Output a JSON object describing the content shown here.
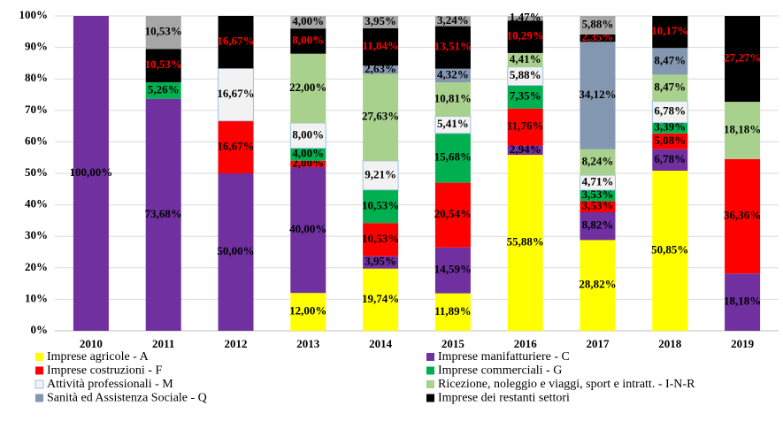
{
  "chart_data": {
    "type": "stacked_bar",
    "categories": [
      "2010",
      "2011",
      "2012",
      "2013",
      "2014",
      "2015",
      "2016",
      "2017",
      "2018",
      "2019"
    ],
    "ylim": [
      0,
      100
    ],
    "yticks": [
      {
        "value": 0,
        "label": "0%"
      },
      {
        "value": 10,
        "label": "10%"
      },
      {
        "value": 20,
        "label": "20%"
      },
      {
        "value": 30,
        "label": "30%"
      },
      {
        "value": 40,
        "label": "40%"
      },
      {
        "value": 50,
        "label": "50%"
      },
      {
        "value": 60,
        "label": "60%"
      },
      {
        "value": 70,
        "label": "70%"
      },
      {
        "value": 80,
        "label": "80%"
      },
      {
        "value": 90,
        "label": "90%"
      },
      {
        "value": 100,
        "label": "100%"
      }
    ],
    "grid": true,
    "series": [
      {
        "name": "Imprese agricole - A",
        "color": "#ffff00",
        "label_color": "#000000",
        "values": [
          null,
          null,
          null,
          12,
          19.74,
          11.89,
          55.88,
          28.82,
          50.85,
          null
        ],
        "value_labels": [
          null,
          null,
          null,
          "12,00%",
          "19,74%",
          "11,89%",
          "55,88%",
          "28,82%",
          "50,85%",
          null
        ]
      },
      {
        "name": "Imprese manifatturiere - C",
        "color": "#7030a0",
        "label_color": "#000000",
        "values": [
          100,
          73.68,
          50,
          40,
          3.95,
          14.59,
          2.94,
          8.82,
          6.78,
          18.18
        ],
        "value_labels": [
          "100,00%",
          "73,68%",
          "50,00%",
          "40,00%",
          "3,95%",
          "14,59%",
          "2,94%",
          "8,82%",
          "6,78%",
          "18,18%"
        ]
      },
      {
        "name": "Imprese costruzioni - F",
        "color": "#ff0000",
        "label_color": "#000000",
        "values": [
          null,
          null,
          16.67,
          2,
          10.53,
          20.54,
          11.76,
          3.53,
          5.08,
          36.36
        ],
        "value_labels": [
          null,
          null,
          "16,67%",
          "2,00%",
          "10,53%",
          "20,54%",
          "11,76%",
          "3,53%",
          "5,08%",
          "36,36%"
        ]
      },
      {
        "name": "Imprese commerciali - G",
        "color": "#00b050",
        "label_color": "#000000",
        "values": [
          null,
          5.26,
          null,
          4,
          10.53,
          15.68,
          7.35,
          3.53,
          3.39,
          null
        ],
        "value_labels": [
          null,
          "5,26%",
          null,
          "4,00%",
          "10,53%",
          "15,68%",
          "7,35%",
          "3,53%",
          "3,39%",
          null
        ]
      },
      {
        "name": "Attività professionali - M",
        "color": "#f2f2f2",
        "stroke": "#9dc3e6",
        "label_color": "#000000",
        "values": [
          null,
          null,
          16.67,
          8,
          9.21,
          5.41,
          5.88,
          4.71,
          6.78,
          null
        ],
        "value_labels": [
          null,
          null,
          "16,67%",
          "8,00%",
          "9,21%",
          "5,41%",
          "5,88%",
          "4,71%",
          "6,78%",
          null
        ]
      },
      {
        "name": "Ricezione, noleggio e viaggi, sport e intratt. - I-N-R",
        "color": "#a9d18e",
        "label_color": "#000000",
        "values": [
          null,
          null,
          null,
          22,
          27.63,
          10.81,
          4.41,
          8.24,
          8.47,
          18.18
        ],
        "value_labels": [
          null,
          null,
          null,
          "22,00%",
          "27,63%",
          "10,81%",
          "4,41%",
          "8,24%",
          "8,47%",
          "18,18%"
        ]
      },
      {
        "name": "Sanità ed Assistenza Sociale - Q",
        "color": "#8497b0",
        "label_color": "#000000",
        "values": [
          null,
          null,
          null,
          null,
          2.63,
          4.32,
          null,
          34.12,
          8.47,
          null
        ],
        "value_labels": [
          null,
          null,
          null,
          null,
          "2,63%",
          "4,32%",
          null,
          "34,12%",
          "8,47%",
          null
        ]
      },
      {
        "name": "Imprese dei restanti settori",
        "color": "#000000",
        "label_color": "#ff0000",
        "values": [
          null,
          10.53,
          16.67,
          8,
          11.84,
          13.51,
          10.29,
          2.35,
          10.17,
          27.27
        ],
        "value_labels": [
          null,
          "10,53%",
          "16,67%",
          "8,00%",
          "11,84%",
          "13,51%",
          "10,29%",
          "2,35%",
          "10,17%",
          "27,27%"
        ]
      },
      {
        "color": "#a6a6a6",
        "label_color": "#000000",
        "values": [
          null,
          10.53,
          null,
          4,
          3.95,
          3.24,
          1.47,
          5.88,
          null,
          null
        ],
        "value_labels": [
          null,
          "10,53%",
          null,
          "4,00%",
          "3,95%",
          "3,24%",
          "1,47%",
          "5,88%",
          null,
          null
        ]
      }
    ]
  }
}
